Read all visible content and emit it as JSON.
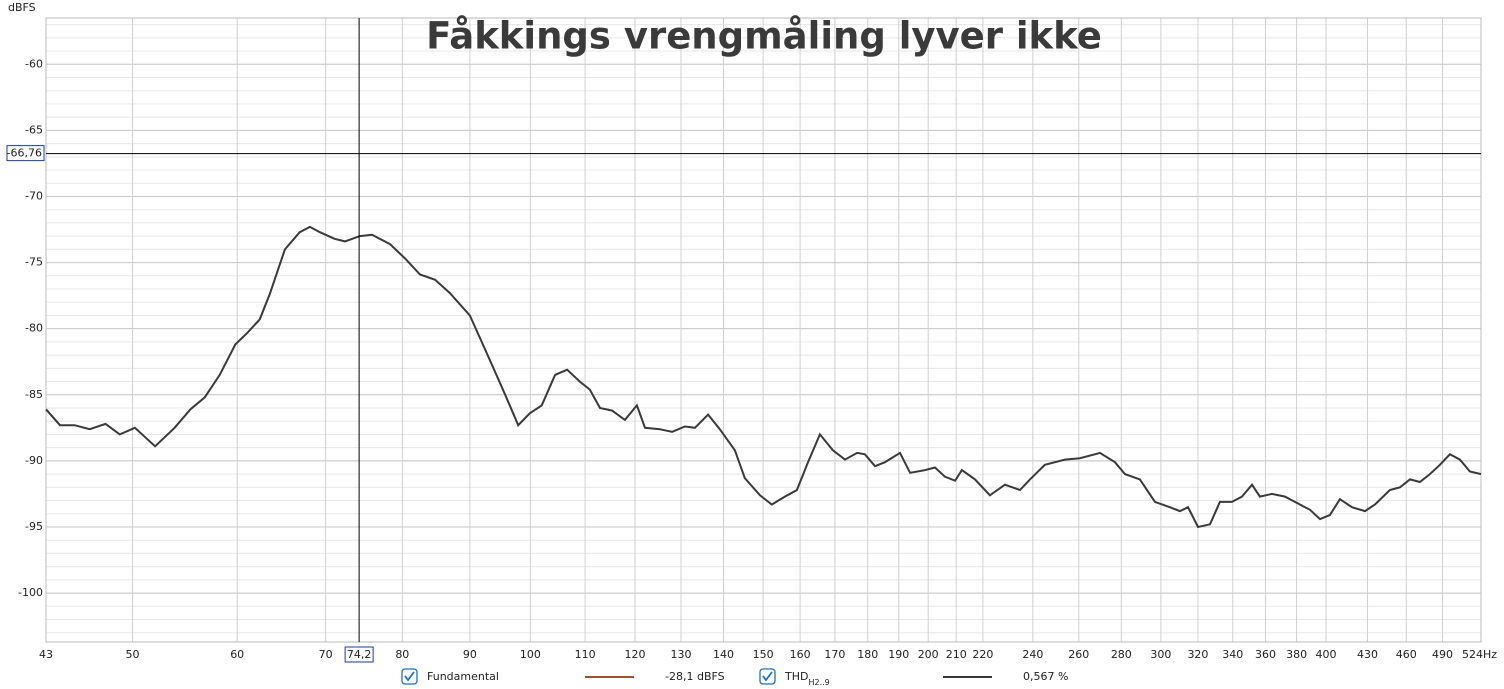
{
  "chart_data": {
    "type": "line",
    "title": "Fåkkings vrengmåling lyver ikke",
    "y_label": "dBFS",
    "log_x": true,
    "grid": true,
    "y_minor_step": 1,
    "xlim": [
      43,
      524
    ],
    "ylim": [
      -56.5,
      -103.7
    ],
    "xticks": [
      43,
      50,
      60,
      70,
      80,
      90,
      100,
      110,
      120,
      130,
      140,
      150,
      160,
      170,
      180,
      190,
      200,
      210,
      220,
      240,
      260,
      280,
      300,
      320,
      340,
      360,
      380,
      400,
      430,
      460,
      490,
      {
        "value": 524,
        "label": "524Hz"
      }
    ],
    "yticks": [
      -60,
      -65,
      -70,
      -75,
      -80,
      -85,
      -90,
      -95,
      -100
    ],
    "cursor_x": {
      "value": 74.2,
      "label": "74,2"
    },
    "cursor_y": {
      "value": -66.76,
      "label": "-66,76"
    },
    "x": [
      43.0,
      44.06,
      45.2,
      46.4,
      47.7,
      48.9,
      50.2,
      52.0,
      53.8,
      55.3,
      56.7,
      58.2,
      59.8,
      61.1,
      62.4,
      63.5,
      65.2,
      66.9,
      68.1,
      69.3,
      71.1,
      72.4,
      74.3,
      75.9,
      78.3,
      80.4,
      82.5,
      84.7,
      86.9,
      90.0,
      93.2,
      95.7,
      97.9,
      99.9,
      102.0,
      104.4,
      106.6,
      109.0,
      110.9,
      112.9,
      115.3,
      117.9,
      120.4,
      122.1,
      125.3,
      128.0,
      130.9,
      133.2,
      136.3,
      139.1,
      142.8,
      145.3,
      149.2,
      152.3,
      155.8,
      159.1,
      162.2,
      165.6,
      169.4,
      173.0,
      176.7,
      179.1,
      182.3,
      185.5,
      190.4,
      193.8,
      198.9,
      202.4,
      205.9,
      209.6,
      212.1,
      217.0,
      222.7,
      228.6,
      234.7,
      238.8,
      245.1,
      253.8,
      260.5,
      269.8,
      276.9,
      281.8,
      289.2,
      296.9,
      304.7,
      310.1,
      314.5,
      320.0,
      326.8,
      332.5,
      339.5,
      345.5,
      351.6,
      356.5,
      364.0,
      372.4,
      382.2,
      389.0,
      395.8,
      402.7,
      409.8,
      418.5,
      428.1,
      435.6,
      447.1,
      455.0,
      463.0,
      471.1,
      479.4,
      487.8,
      496.4,
      505.1,
      514.0,
      524.0
    ],
    "series": [
      {
        "name": "THD",
        "name_subscript": "H2..9",
        "reading": "0,567 %",
        "checked": true,
        "color": "#3a3a3a",
        "values": [
          -86.1,
          -87.3,
          -87.3,
          -87.6,
          -87.2,
          -88.0,
          -87.5,
          -88.9,
          -87.5,
          -86.1,
          -85.2,
          -83.5,
          -81.2,
          -80.3,
          -79.3,
          -77.4,
          -74.0,
          -72.7,
          -72.3,
          -72.7,
          -73.2,
          -73.4,
          -73.0,
          -72.9,
          -73.6,
          -74.7,
          -75.9,
          -76.3,
          -77.3,
          -79.0,
          -82.4,
          -85.0,
          -87.3,
          -86.4,
          -85.8,
          -83.5,
          -83.1,
          -84.0,
          -84.6,
          -86.0,
          -86.2,
          -86.9,
          -85.8,
          -87.5,
          -87.6,
          -87.8,
          -87.4,
          -87.5,
          -86.5,
          -87.6,
          -89.2,
          -91.3,
          -92.6,
          -93.3,
          -92.7,
          -92.2,
          -90.1,
          -88.0,
          -89.2,
          -89.9,
          -89.4,
          -89.5,
          -90.4,
          -90.1,
          -89.4,
          -90.9,
          -90.7,
          -90.5,
          -91.2,
          -91.5,
          -90.7,
          -91.4,
          -92.6,
          -91.8,
          -92.2,
          -91.4,
          -90.3,
          -89.9,
          -89.8,
          -89.4,
          -90.1,
          -91.0,
          -91.4,
          -93.1,
          -93.5,
          -93.8,
          -93.5,
          -95.0,
          -94.8,
          -93.1,
          -93.1,
          -92.7,
          -91.8,
          -92.7,
          -92.5,
          -92.7,
          -93.3,
          -93.7,
          -94.4,
          -94.1,
          -92.9,
          -93.5,
          -93.8,
          -93.3,
          -92.2,
          -92.0,
          -91.4,
          -91.6,
          -91.0,
          -90.3,
          -89.5,
          -89.9,
          -90.8,
          -91.0
        ]
      }
    ],
    "other_traces": [
      {
        "name": "Fundamental",
        "reading": "-28,1 dBFS",
        "checked": true,
        "color": "#a0522d"
      }
    ]
  }
}
